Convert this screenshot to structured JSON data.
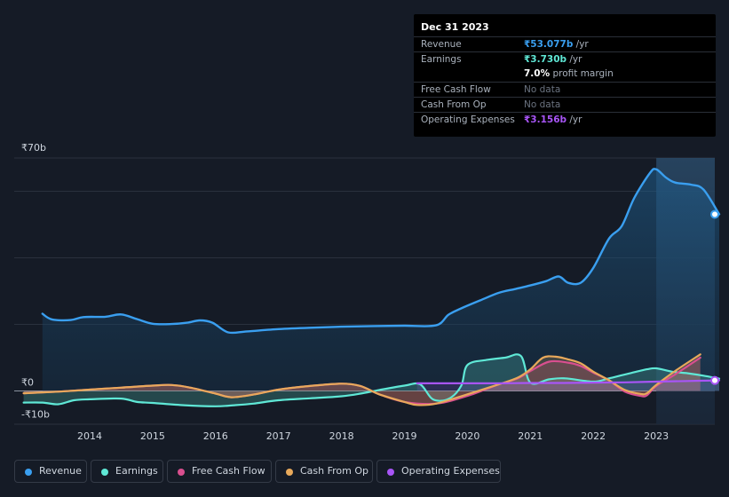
{
  "tooltip": {
    "date": "Dec 31 2023",
    "rows": [
      {
        "label": "Revenue",
        "value": "₹53.077b",
        "unit": " /yr",
        "color": "#3a9ff0"
      },
      {
        "label": "Earnings",
        "value": "₹3.730b",
        "unit": " /yr",
        "color": "#5fe8d6"
      },
      {
        "label": "",
        "value": "7.0%",
        "unit": " profit margin",
        "color": "#ffffff"
      },
      {
        "label": "Free Cash Flow",
        "value": "No data",
        "unit": "",
        "color": "#6b7380"
      },
      {
        "label": "Cash From Op",
        "value": "No data",
        "unit": "",
        "color": "#6b7380"
      },
      {
        "label": "Operating Expenses",
        "value": "₹3.156b",
        "unit": " /yr",
        "color": "#a855f7"
      }
    ]
  },
  "legend": [
    {
      "label": "Revenue",
      "color": "#3a9ff0"
    },
    {
      "label": "Earnings",
      "color": "#5fe8d6"
    },
    {
      "label": "Free Cash Flow",
      "color": "#d94f8f"
    },
    {
      "label": "Cash From Op",
      "color": "#e8a95b"
    },
    {
      "label": "Operating Expenses",
      "color": "#a855f7"
    }
  ],
  "chart_data": {
    "type": "area",
    "title": "",
    "xlabel": "",
    "ylabel": "",
    "y_unit": "₹ billions",
    "ylim": [
      -10,
      70
    ],
    "ytick_labels": [
      "₹70b",
      "₹0",
      "-₹10b"
    ],
    "yticks": [
      70,
      0,
      -10
    ],
    "xtick_labels": [
      "2014",
      "2015",
      "2016",
      "2017",
      "2018",
      "2019",
      "2020",
      "2021",
      "2022",
      "2023"
    ],
    "xticks": [
      2014,
      2015,
      2016,
      2017,
      2018,
      2019,
      2020,
      2021,
      2022,
      2023
    ],
    "xlim": [
      2012.7,
      2024.0
    ],
    "forecast_shade_from": 2023.0,
    "series": [
      {
        "name": "Revenue",
        "color": "#3a9ff0",
        "x": [
          2013.25,
          2013.4,
          2013.7,
          2013.9,
          2014.25,
          2014.5,
          2014.75,
          2015.0,
          2015.3,
          2015.55,
          2015.75,
          2015.95,
          2016.2,
          2016.5,
          2017.0,
          2017.5,
          2018.0,
          2018.5,
          2019.0,
          2019.5,
          2019.7,
          2019.9,
          2020.2,
          2020.5,
          2020.75,
          2021.0,
          2021.25,
          2021.45,
          2021.6,
          2021.8,
          2022.0,
          2022.25,
          2022.45,
          2022.65,
          2022.9,
          2023.0,
          2023.15,
          2023.3,
          2023.55,
          2023.75,
          2024.0
        ],
        "values": [
          23.2,
          21.5,
          21.3,
          22.2,
          22.3,
          23.0,
          21.6,
          20.2,
          20.1,
          20.5,
          21.2,
          20.5,
          17.6,
          17.9,
          18.6,
          19.0,
          19.3,
          19.5,
          19.6,
          19.7,
          22.9,
          24.8,
          27.2,
          29.5,
          30.6,
          31.7,
          33.0,
          34.4,
          32.5,
          32.5,
          37.0,
          45.8,
          49.5,
          58.0,
          65.5,
          66.6,
          64.2,
          62.6,
          62.0,
          60.5,
          53.1
        ]
      },
      {
        "name": "Earnings",
        "color": "#5fe8d6",
        "x": [
          2012.95,
          2013.25,
          2013.5,
          2013.75,
          2014.0,
          2014.5,
          2014.75,
          2015.0,
          2015.5,
          2016.0,
          2016.3,
          2016.6,
          2017.0,
          2017.5,
          2018.0,
          2018.3,
          2018.6,
          2019.0,
          2019.25,
          2019.45,
          2019.7,
          2019.9,
          2020.0,
          2020.3,
          2020.6,
          2020.85,
          2021.0,
          2021.3,
          2021.55,
          2022.0,
          2022.25,
          2022.6,
          2022.85,
          2023.0,
          2023.25,
          2023.5,
          2023.75,
          2024.0
        ],
        "values": [
          -3.5,
          -3.5,
          -4.0,
          -2.8,
          -2.5,
          -2.3,
          -3.3,
          -3.6,
          -4.3,
          -4.6,
          -4.3,
          -3.8,
          -2.8,
          -2.2,
          -1.6,
          -0.8,
          0.3,
          1.6,
          2.0,
          -2.5,
          -2.4,
          1.5,
          7.8,
          9.3,
          10.0,
          10.5,
          2.5,
          3.5,
          3.8,
          2.8,
          3.8,
          5.4,
          6.5,
          6.8,
          5.8,
          5.3,
          4.6,
          3.7
        ]
      },
      {
        "name": "Free Cash Flow",
        "color": "#d94f8f",
        "x": [
          2012.95,
          2013.5,
          2014.0,
          2014.5,
          2015.0,
          2015.3,
          2015.6,
          2016.0,
          2016.25,
          2016.6,
          2017.0,
          2017.5,
          2018.0,
          2018.3,
          2018.6,
          2019.0,
          2019.5,
          2020.0,
          2020.5,
          2020.8,
          2021.0,
          2021.3,
          2021.6,
          2021.8,
          2022.0,
          2022.25,
          2022.5,
          2022.75,
          2022.85,
          2023.0,
          2023.3,
          2023.7
        ],
        "values": [
          -0.7,
          -0.2,
          0.4,
          1.0,
          1.6,
          1.8,
          1.0,
          -0.8,
          -1.9,
          -1.1,
          0.4,
          1.5,
          2.2,
          1.5,
          -1.0,
          -3.3,
          -3.8,
          -1.5,
          2.0,
          3.8,
          6.0,
          8.8,
          8.5,
          7.5,
          5.5,
          3.2,
          -0.2,
          -1.5,
          -1.3,
          1.5,
          5.0,
          10.0
        ]
      },
      {
        "name": "Cash From Op",
        "color": "#e8a95b",
        "x": [
          2012.95,
          2013.5,
          2014.0,
          2014.5,
          2015.0,
          2015.3,
          2015.6,
          2016.0,
          2016.25,
          2016.6,
          2017.0,
          2017.5,
          2018.0,
          2018.3,
          2018.6,
          2019.0,
          2019.2,
          2019.5,
          2020.0,
          2020.5,
          2020.8,
          2021.0,
          2021.2,
          2021.4,
          2021.6,
          2021.8,
          2022.0,
          2022.25,
          2022.5,
          2022.75,
          2022.85,
          2023.0,
          2023.3,
          2023.7
        ],
        "values": [
          -0.7,
          -0.2,
          0.4,
          1.0,
          1.6,
          1.8,
          1.0,
          -0.8,
          -1.9,
          -1.1,
          0.4,
          1.5,
          2.2,
          1.5,
          -1.0,
          -3.3,
          -4.2,
          -3.8,
          -1.0,
          2.0,
          4.0,
          6.5,
          10.0,
          10.3,
          9.5,
          8.3,
          5.8,
          3.2,
          0.3,
          -0.9,
          -0.7,
          1.8,
          6.0,
          11.0
        ]
      },
      {
        "name": "Operating Expenses",
        "color": "#a855f7",
        "x": [
          2019.2,
          2019.6,
          2020.0,
          2020.5,
          2021.0,
          2021.5,
          2022.0,
          2022.5,
          2023.0,
          2023.5,
          2024.0
        ],
        "values": [
          2.3,
          2.3,
          2.3,
          2.3,
          2.4,
          2.4,
          2.5,
          2.6,
          2.8,
          3.0,
          3.16
        ]
      }
    ]
  }
}
